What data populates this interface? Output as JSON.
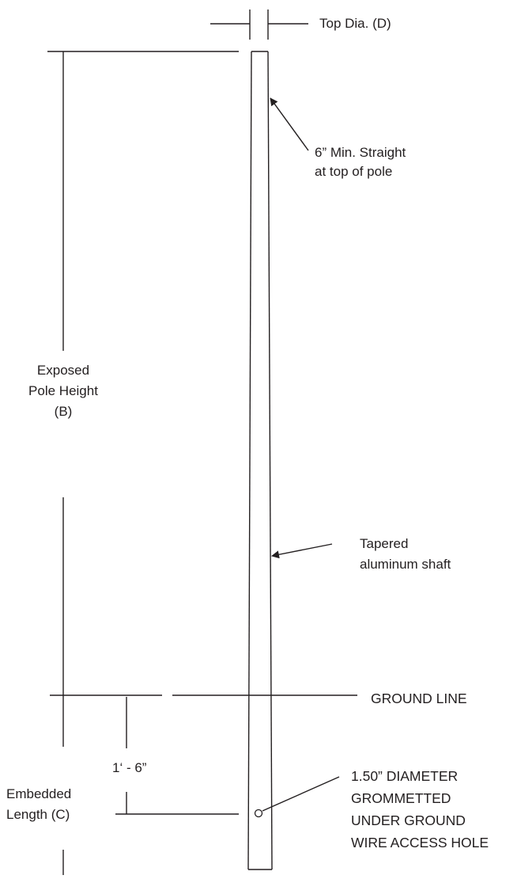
{
  "labels": {
    "top_dia": "Top Dia. (D)",
    "min_straight_line1": "6” Min. Straight",
    "min_straight_line2": "at top of pole",
    "exposed_line1": "Exposed",
    "exposed_line2": "Pole Height",
    "exposed_line3": "(B)",
    "tapered_line1": "Tapered",
    "tapered_line2": "aluminum shaft",
    "ground_line": "GROUND LINE",
    "dimension_1_6": "1‘ - 6”",
    "embedded_line1": "Embedded",
    "embedded_line2": "Length (C)",
    "hole_line1": "1.50” DIAMETER",
    "hole_line2": "GROMMETTED",
    "hole_line3": "UNDER GROUND",
    "hole_line4": "WIRE ACCESS HOLE"
  },
  "colors": {
    "line": "#231f20",
    "background": "#ffffff"
  }
}
